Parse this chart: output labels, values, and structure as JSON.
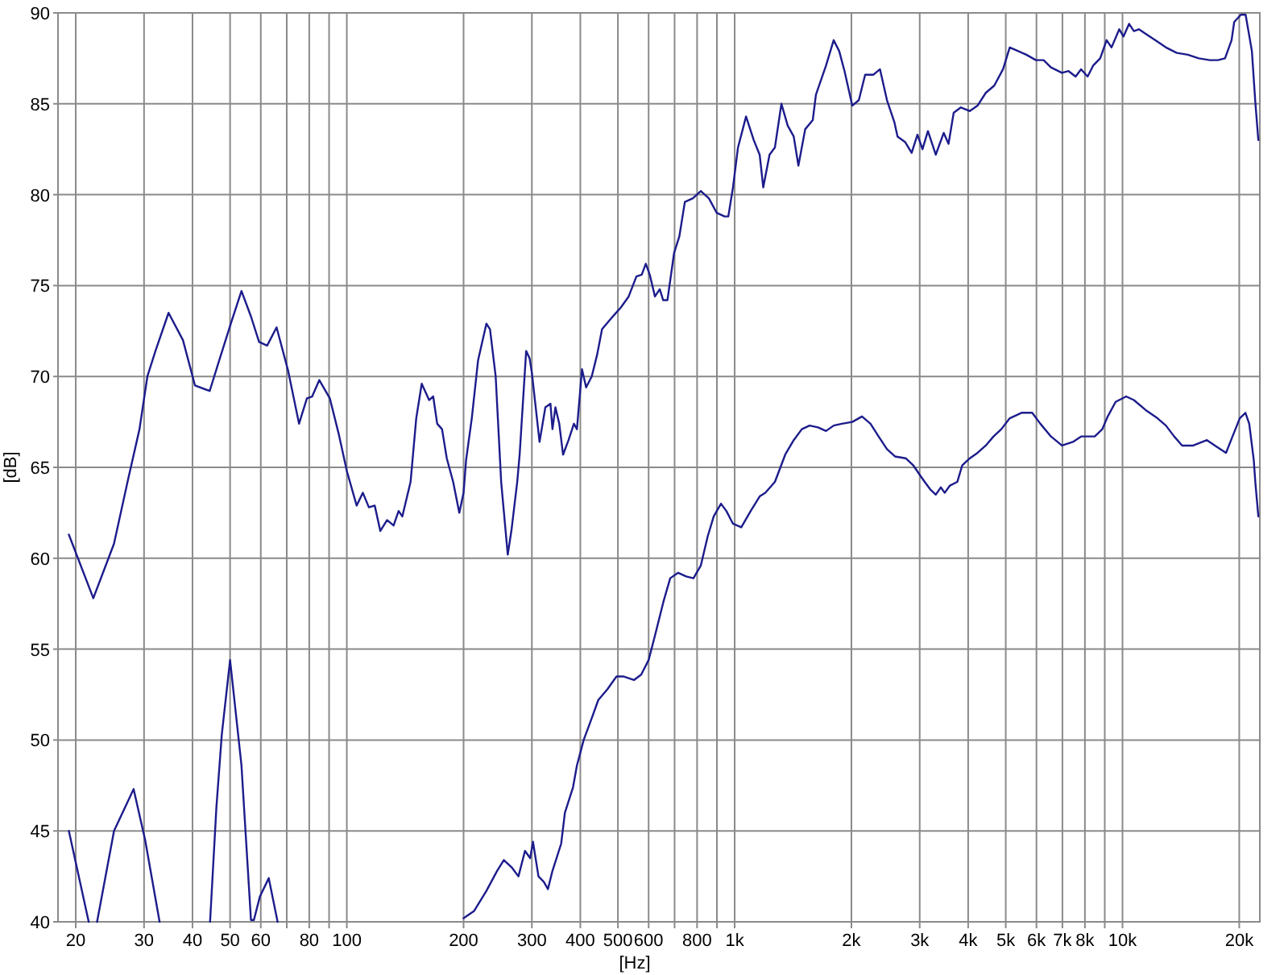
{
  "chart_data": {
    "type": "line",
    "xlabel": "[Hz]",
    "ylabel": "[dB]",
    "log": "x",
    "grid": true,
    "xlim": [
      18,
      22600
    ],
    "ylim": [
      40,
      90
    ],
    "xticks": [
      20,
      30,
      40,
      50,
      60,
      {
        "value": 70,
        "label": null
      },
      80,
      {
        "value": 90,
        "label": null
      },
      100,
      200,
      300,
      400,
      500,
      600,
      {
        "value": 700,
        "label": null
      },
      800,
      {
        "value": 900,
        "label": null
      },
      {
        "value": 1000,
        "label": "1k"
      },
      {
        "value": 2000,
        "label": "2k"
      },
      {
        "value": 3000,
        "label": "3k"
      },
      {
        "value": 4000,
        "label": "4k"
      },
      {
        "value": 5000,
        "label": "5k"
      },
      {
        "value": 6000,
        "label": "6k"
      },
      {
        "value": 7000,
        "label": "7k"
      },
      {
        "value": 8000,
        "label": "8k"
      },
      {
        "value": 9000,
        "label": null
      },
      {
        "value": 10000,
        "label": "10k"
      },
      {
        "value": 20000,
        "label": "20k"
      }
    ],
    "yticks": [
      40,
      45,
      50,
      55,
      60,
      65,
      70,
      75,
      80,
      85,
      90
    ],
    "series": [
      {
        "color": "#1c1c8c",
        "x": [
          19.2,
          22.2,
          25.1,
          27.2,
          29.2,
          30.6,
          32.1,
          34.7,
          37.8,
          40.6,
          44.3,
          46.9,
          50.2,
          53.5,
          56.6,
          59.4,
          62.3,
          65.9,
          70.6,
          75.3,
          78.9,
          81.4,
          84.9,
          90.4,
          95.4,
          100,
          106,
          110,
          114,
          118,
          122,
          127,
          132,
          136,
          139,
          146,
          151,
          156,
          163,
          167,
          171,
          176,
          181,
          188,
          195,
          200,
          203,
          210,
          218,
          229,
          234,
          242,
          250,
          260,
          266,
          275,
          279,
          290,
          296,
          300,
          314,
          325,
          335,
          339,
          345,
          353,
          361,
          373,
          385,
          392,
          404,
          414,
          428,
          442,
          455,
          485,
          509,
          533,
          558,
          576,
          590,
          604,
          623,
          641,
          654,
          671,
          698,
          720,
          744,
          780,
          818,
          858,
          899,
          942,
          963,
          990,
          1020,
          1070,
          1120,
          1160,
          1185,
          1230,
          1270,
          1320,
          1370,
          1420,
          1460,
          1520,
          1590,
          1620,
          1720,
          1800,
          1860,
          1920,
          2010,
          2090,
          2170,
          2280,
          2370,
          2470,
          2580,
          2630,
          2750,
          2860,
          2960,
          3050,
          3150,
          3300,
          3460,
          3560,
          3670,
          3830,
          4040,
          4230,
          4440,
          4670,
          4920,
          5120,
          5380,
          5650,
          5980,
          6260,
          6540,
          6980,
          7260,
          7570,
          7820,
          8130,
          8400,
          8760,
          9100,
          9370,
          9810,
          10060,
          10400,
          10700,
          11020,
          11560,
          12140,
          12940,
          13800,
          14730,
          15720,
          16780,
          17620,
          18380,
          19110,
          19410,
          20200,
          20770,
          21560,
          22000,
          22400
        ],
        "values": [
          61.3,
          57.8,
          60.8,
          64.2,
          67.1,
          70.0,
          71.4,
          73.5,
          72.0,
          69.5,
          69.2,
          70.9,
          72.9,
          74.7,
          73.3,
          71.9,
          71.7,
          72.7,
          70.3,
          67.4,
          68.8,
          68.9,
          69.8,
          68.8,
          66.8,
          64.8,
          62.9,
          63.6,
          62.8,
          62.9,
          61.5,
          62.1,
          61.8,
          62.6,
          62.3,
          64.2,
          67.7,
          69.6,
          68.7,
          68.9,
          67.4,
          67.1,
          65.5,
          64.2,
          62.5,
          63.6,
          65.4,
          67.7,
          70.9,
          72.9,
          72.6,
          70.0,
          64.2,
          60.2,
          61.6,
          64.2,
          65.7,
          71.4,
          71.0,
          70.2,
          66.4,
          68.3,
          68.5,
          67.1,
          68.3,
          67.4,
          65.7,
          66.5,
          67.4,
          67.1,
          70.4,
          69.4,
          70.0,
          71.2,
          72.6,
          73.3,
          73.8,
          74.4,
          75.5,
          75.6,
          76.2,
          75.6,
          74.4,
          74.8,
          74.2,
          74.2,
          76.8,
          77.7,
          79.6,
          79.8,
          80.2,
          79.8,
          79.0,
          78.8,
          78.8,
          80.4,
          82.6,
          84.3,
          83.0,
          82.2,
          80.4,
          82.2,
          82.6,
          85.0,
          83.8,
          83.2,
          81.6,
          83.6,
          84.1,
          85.5,
          87.1,
          88.5,
          87.9,
          86.8,
          84.9,
          85.2,
          86.6,
          86.6,
          86.9,
          85.2,
          84.0,
          83.2,
          82.9,
          82.3,
          83.3,
          82.5,
          83.5,
          82.2,
          83.4,
          82.8,
          84.5,
          84.8,
          84.6,
          84.9,
          85.6,
          86.0,
          86.9,
          88.1,
          87.9,
          87.7,
          87.4,
          87.4,
          87.0,
          86.7,
          86.8,
          86.5,
          86.9,
          86.5,
          87.1,
          87.5,
          88.5,
          88.1,
          89.1,
          88.7,
          89.4,
          89.0,
          89.1,
          88.8,
          88.5,
          88.1,
          87.8,
          87.7,
          87.5,
          87.4,
          87.4,
          87.5,
          88.5,
          89.5,
          89.9,
          89.9,
          87.9,
          85.1,
          83.0
        ]
      },
      {
        "color": "#1c1c8c",
        "x": [
          19.2,
          21.6,
          22.1,
          22.7,
          25.1,
          28.2,
          30.2,
          32.9,
          38,
          44.4,
          46.1,
          47.6,
          50.0,
          50.7,
          53.5,
          56.6,
          57.6,
          59.7,
          62.9,
          66.3,
          120,
          200,
          213,
          229,
          244,
          254,
          266,
          277,
          288,
          297,
          302,
          312,
          322,
          330,
          339,
          357,
          365,
          383,
          392,
          408,
          428,
          445,
          470,
          496,
          516,
          550,
          574,
          600,
          624,
          655,
          682,
          715,
          750,
          783,
          818,
          852,
          883,
          922,
          952,
          990,
          1040,
          1100,
          1160,
          1200,
          1270,
          1350,
          1420,
          1490,
          1560,
          1640,
          1720,
          1800,
          1890,
          2010,
          2130,
          2240,
          2350,
          2470,
          2590,
          2760,
          2890,
          3020,
          3090,
          3190,
          3300,
          3400,
          3480,
          3590,
          3750,
          3860,
          4040,
          4230,
          4440,
          4650,
          4870,
          5120,
          5490,
          5850,
          6140,
          6540,
          6980,
          7450,
          7820,
          8480,
          8870,
          9160,
          9600,
          10220,
          10700,
          11560,
          12310,
          12940,
          13590,
          14250,
          15210,
          16510,
          17310,
          18490,
          19300,
          20060,
          20750,
          21220,
          21800,
          22000,
          22400
        ],
        "values": [
          45.0,
          40.0,
          null,
          40.0,
          45.0,
          47.3,
          44.5,
          40.0,
          null,
          40.0,
          46.3,
          50.3,
          54.4,
          53.2,
          48.6,
          40.1,
          40.1,
          41.4,
          42.4,
          40.0,
          null,
          40.2,
          40.6,
          41.7,
          42.8,
          43.4,
          43.0,
          42.5,
          43.9,
          43.5,
          44.4,
          42.5,
          42.2,
          41.8,
          42.8,
          44.3,
          46.0,
          47.4,
          48.6,
          50.0,
          51.2,
          52.2,
          52.8,
          53.5,
          53.5,
          53.3,
          53.6,
          54.4,
          55.8,
          57.6,
          58.9,
          59.2,
          59.0,
          58.9,
          59.6,
          61.2,
          62.3,
          63.0,
          62.6,
          61.9,
          61.7,
          62.6,
          63.4,
          63.6,
          64.2,
          65.7,
          66.5,
          67.1,
          67.3,
          67.2,
          67.0,
          67.3,
          67.4,
          67.5,
          67.8,
          67.4,
          66.7,
          66.0,
          65.6,
          65.5,
          65.1,
          64.5,
          64.2,
          63.8,
          63.5,
          63.9,
          63.6,
          64.0,
          64.2,
          65.1,
          65.5,
          65.8,
          66.2,
          66.7,
          67.1,
          67.7,
          68.0,
          68.0,
          67.4,
          66.7,
          66.2,
          66.4,
          66.7,
          66.7,
          67.1,
          67.8,
          68.6,
          68.9,
          68.7,
          68.1,
          67.7,
          67.3,
          66.7,
          66.2,
          66.2,
          66.5,
          66.2,
          65.8,
          66.8,
          67.7,
          68.0,
          67.4,
          65.4,
          64.2,
          62.3
        ]
      }
    ]
  }
}
